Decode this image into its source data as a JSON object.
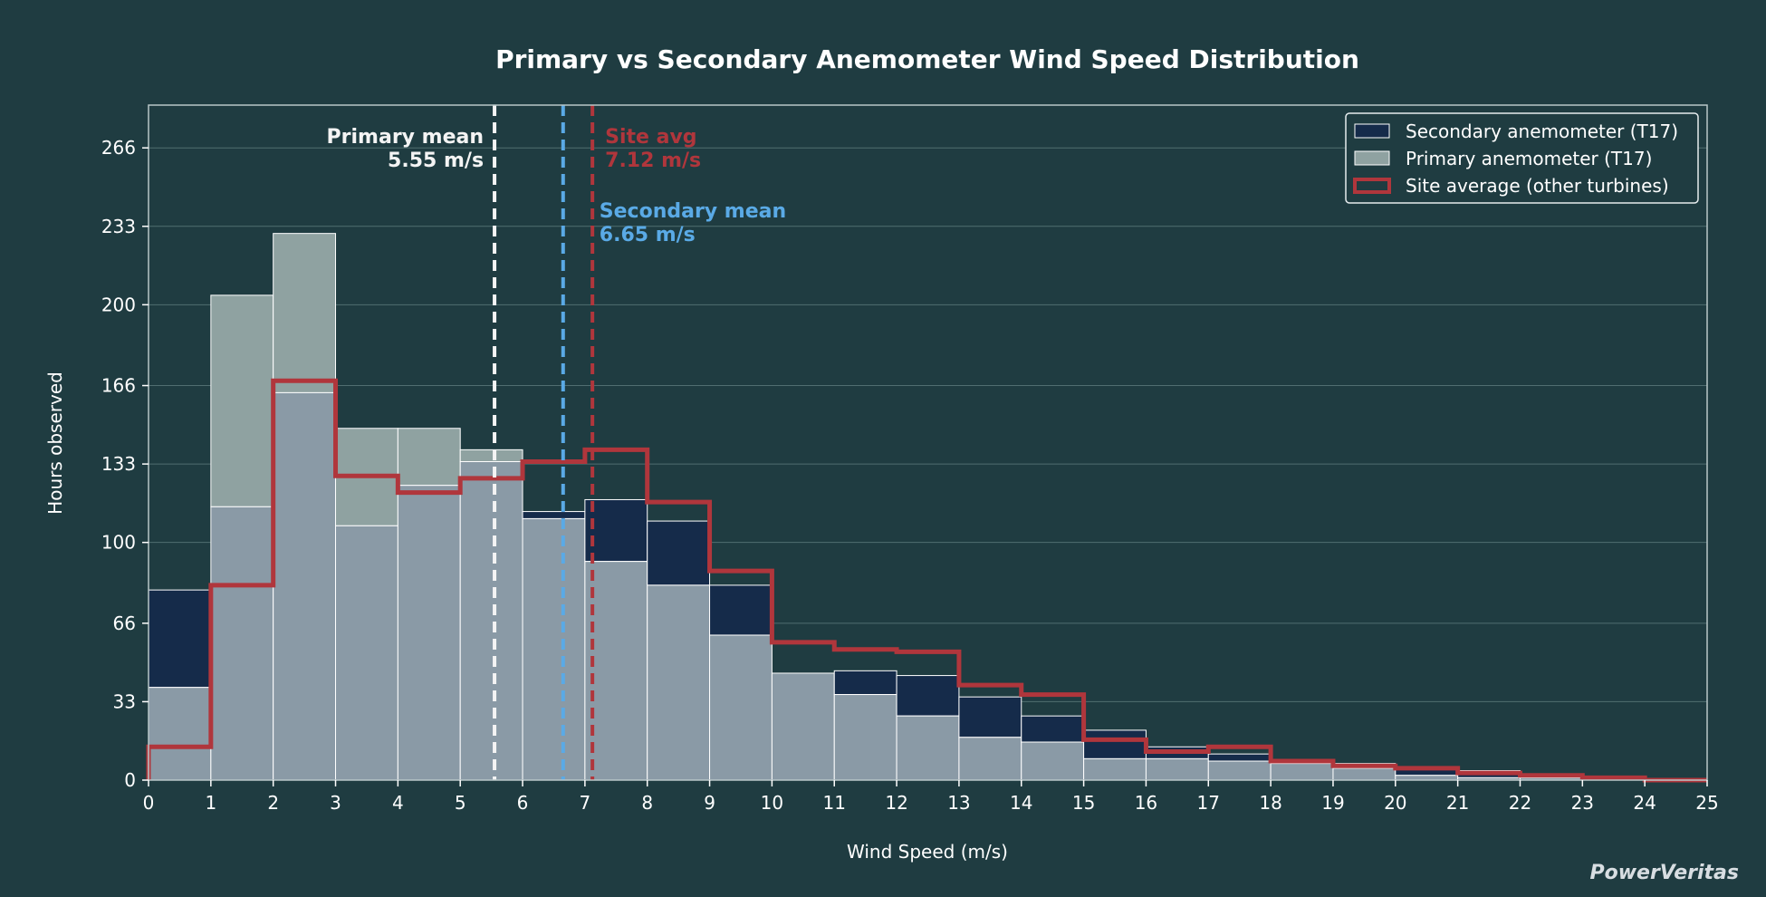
{
  "chart_data": {
    "type": "histogram",
    "title": "Primary vs Secondary Anemometer Wind Speed Distribution",
    "xlabel": "Wind Speed (m/s)",
    "ylabel": "Hours observed",
    "xlim": [
      0,
      25
    ],
    "ylim": [
      0,
      266
    ],
    "xticks": [
      "0",
      "1",
      "2",
      "3",
      "4",
      "5",
      "6",
      "7",
      "8",
      "9",
      "10",
      "11",
      "12",
      "13",
      "14",
      "15",
      "16",
      "17",
      "18",
      "19",
      "20",
      "21",
      "22",
      "23",
      "24",
      "25"
    ],
    "yticks": [
      "0",
      "33",
      "66",
      "100",
      "133",
      "166",
      "200",
      "233",
      "266"
    ],
    "bin_edges": [
      0,
      1,
      2,
      3,
      4,
      5,
      6,
      7,
      8,
      9,
      10,
      11,
      12,
      13,
      14,
      15,
      16,
      17,
      18,
      19,
      20,
      21,
      22,
      23,
      24,
      25
    ],
    "grid": "horizontal",
    "legend_position": "top-right",
    "series": [
      {
        "name": "Secondary anemometer (T17)",
        "style": "bars",
        "color": "#152b4a",
        "values": [
          80,
          115,
          163,
          107,
          124,
          134,
          113,
          118,
          109,
          82,
          45,
          46,
          44,
          35,
          27,
          21,
          14,
          11,
          8,
          7,
          5,
          4,
          2,
          1,
          0
        ]
      },
      {
        "name": "Primary anemometer (T17)",
        "style": "bars",
        "color": "#8fa2a1",
        "values": [
          39,
          204,
          230,
          148,
          148,
          139,
          110,
          92,
          82,
          61,
          45,
          36,
          27,
          18,
          16,
          9,
          9,
          8,
          7,
          5,
          2,
          1,
          1,
          0,
          0
        ]
      },
      {
        "name": "Site average (other turbines)",
        "style": "step",
        "color": "#b0363c",
        "values": [
          14,
          82,
          168,
          128,
          121,
          127,
          134,
          139,
          117,
          88,
          58,
          55,
          54,
          40,
          36,
          17,
          12,
          14,
          8,
          6,
          5,
          3,
          2,
          1,
          0
        ]
      }
    ],
    "mean_lines": [
      {
        "label": "Primary mean",
        "value_text": "5.55 m/s",
        "x": 5.55,
        "color": "#f4f4f4"
      },
      {
        "label": "Secondary mean",
        "value_text": "6.65 m/s",
        "x": 6.65,
        "color": "#5aaae6"
      },
      {
        "label": "Site avg",
        "value_text": "7.12 m/s",
        "x": 7.12,
        "color": "#b0363c"
      }
    ],
    "overlap_color": "#8a9aa6"
  },
  "watermark": "PowerVeritas"
}
